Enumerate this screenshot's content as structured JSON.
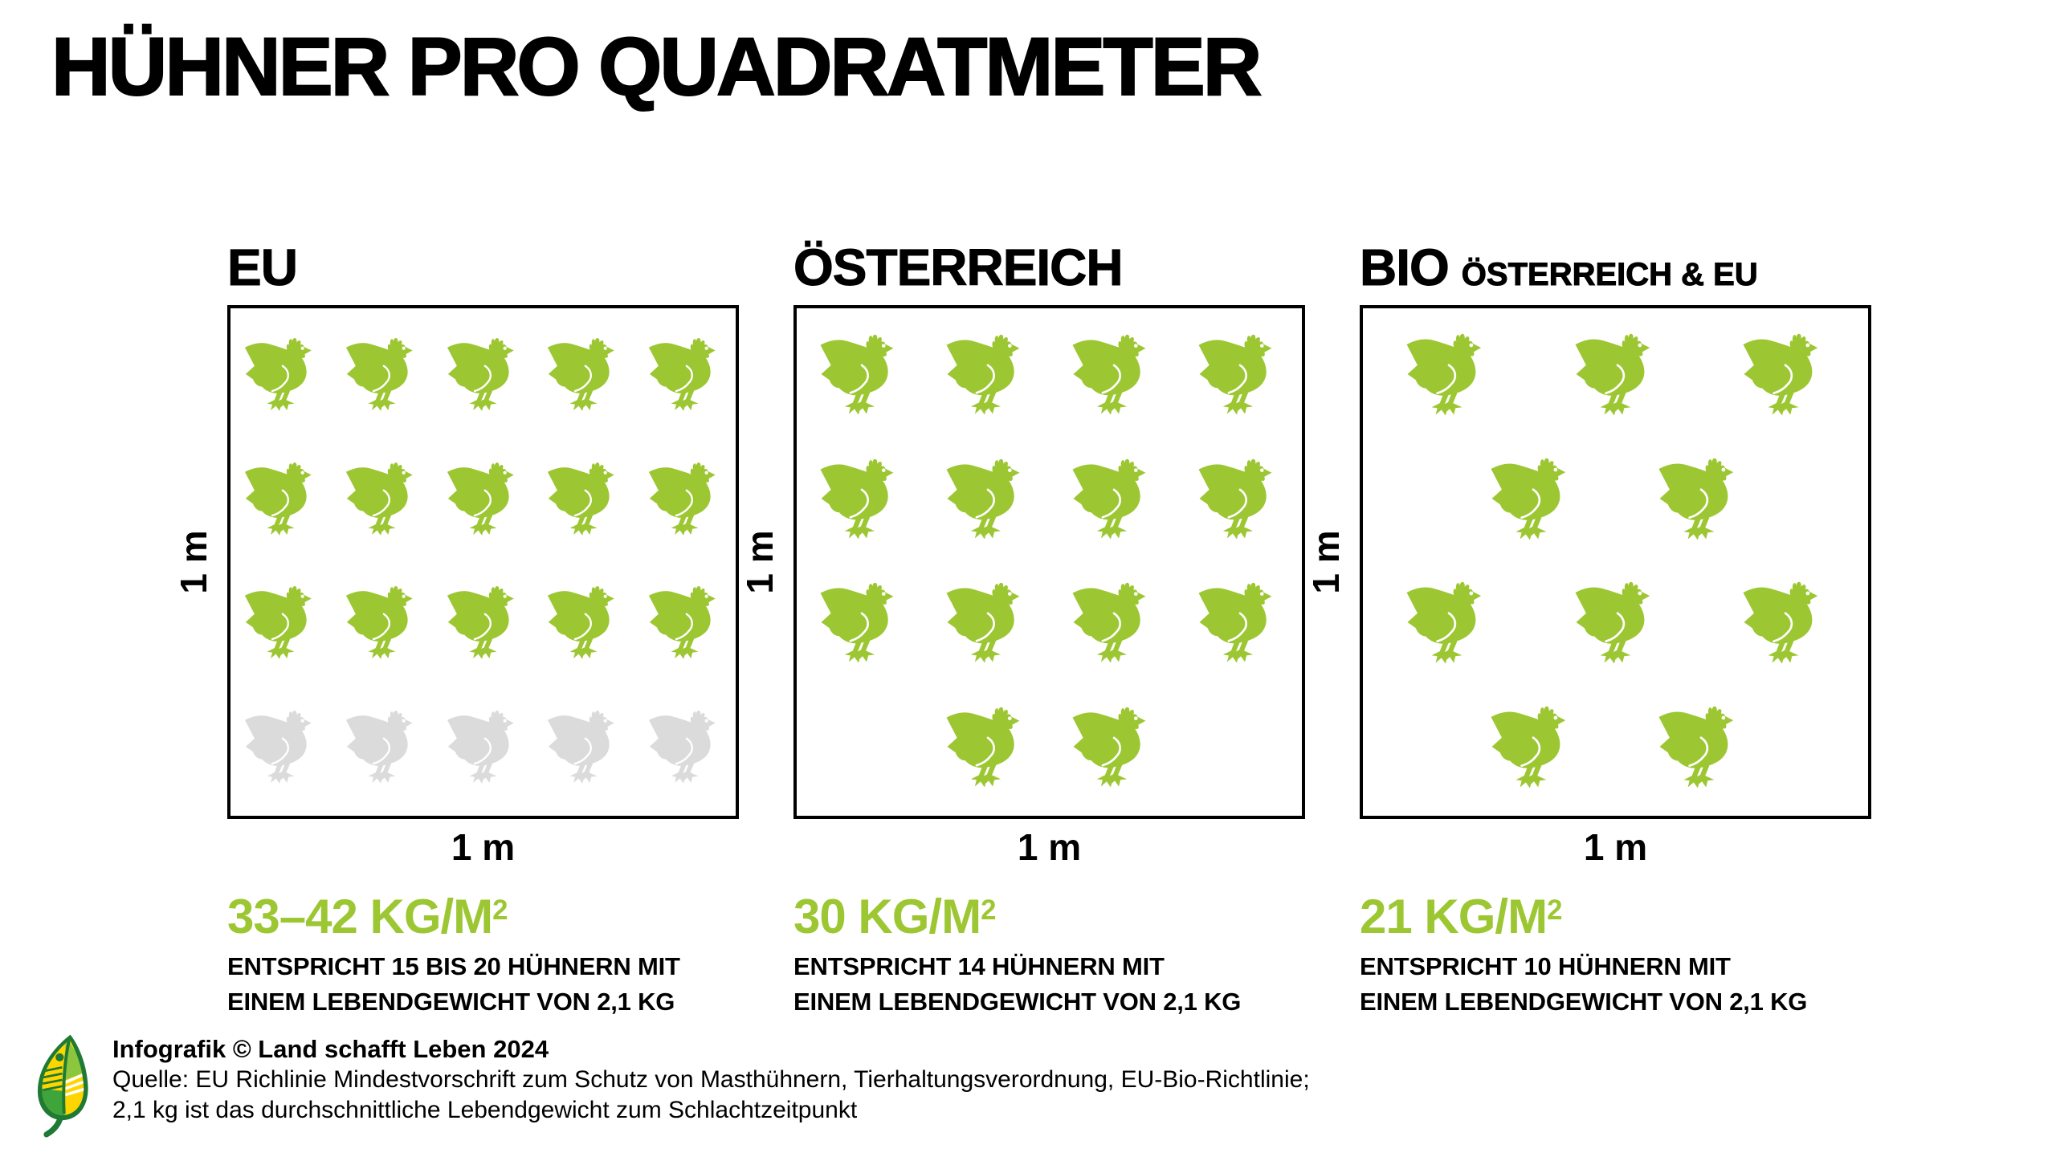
{
  "title": "HÜHNER PRO QUADRATMETER",
  "colors": {
    "chicken_green": "#9CC733",
    "chicken_gray": "#DBDBDB",
    "text_black": "#000000",
    "value_green": "#9CC733",
    "logo_dark_green": "#1E7A34",
    "logo_light_green": "#8CC63E",
    "logo_mid_green": "#3FA43A",
    "logo_yellow": "#FFD500"
  },
  "panels": [
    {
      "title": "EU",
      "subtitle": "",
      "side_label": "1 m",
      "bottom_label": "1 m",
      "value": "33–42 KG/M",
      "value_sup": "2",
      "desc_line1": "ENTSPRICHT 15 BIS 20 HÜHNERN MIT",
      "desc_line2": "EINEM LEBENDGEWICHT VON 2,1 KG",
      "columns": 5,
      "rows": [
        {
          "count": 5,
          "variant": "green"
        },
        {
          "count": 5,
          "variant": "green"
        },
        {
          "count": 5,
          "variant": "green"
        },
        {
          "count": 5,
          "variant": "gray"
        }
      ]
    },
    {
      "title": "ÖSTERREICH",
      "subtitle": "",
      "side_label": "1 m",
      "bottom_label": "1 m",
      "value": "30 KG/M",
      "value_sup": "2",
      "desc_line1": "ENTSPRICHT 14 HÜHNERN MIT",
      "desc_line2": "EINEM LEBENDGEWICHT VON 2,1 KG",
      "columns": 4,
      "rows": [
        {
          "count": 4,
          "variant": "green"
        },
        {
          "count": 4,
          "variant": "green"
        },
        {
          "count": 4,
          "variant": "green"
        },
        {
          "count": 2,
          "variant": "green"
        }
      ]
    },
    {
      "title": "BIO",
      "subtitle": "ÖSTERREICH & EU",
      "side_label": "1 m",
      "bottom_label": "1 m",
      "value": "21 KG/M",
      "value_sup": "2",
      "desc_line1": "ENTSPRICHT 10 HÜHNERN MIT",
      "desc_line2": "EINEM LEBENDGEWICHT VON 2,1 KG",
      "columns": 3,
      "rows": [
        {
          "count": 3,
          "variant": "green"
        },
        {
          "count": 2,
          "variant": "green"
        },
        {
          "count": 3,
          "variant": "green"
        },
        {
          "count": 2,
          "variant": "green"
        }
      ]
    }
  ],
  "footer": {
    "credit": "Infografik © Land schafft Leben 2024",
    "source_line1": "Quelle: EU Richlinie Mindestvorschrift zum Schutz von Masthühnern, Tierhaltungsverordnung, EU-Bio-Richtlinie;",
    "source_line2": "2,1 kg ist das durchschnittliche Lebendgewicht zum Schlachtzeitpunkt"
  },
  "chart_data": {
    "type": "pictogram",
    "title": "HÜHNER PRO QUADRATMETER",
    "unit": "kg/m²",
    "categories": [
      "EU",
      "ÖSTERREICH",
      "BIO ÖSTERREICH & EU"
    ],
    "density_labels": [
      "33–42 KG/M²",
      "30 KG/M²",
      "21 KG/M²"
    ],
    "density_ranges_kg_per_m2": [
      [
        33,
        42
      ],
      [
        30,
        30
      ],
      [
        21,
        21
      ]
    ],
    "chickens_per_m2_labels": [
      "15 bis 20",
      "14",
      "10"
    ],
    "chickens_green_icons": [
      15,
      14,
      10
    ],
    "chickens_gray_icons": [
      5,
      0,
      0
    ],
    "area_side_label": "1 m",
    "live_weight_kg": "2,1"
  }
}
